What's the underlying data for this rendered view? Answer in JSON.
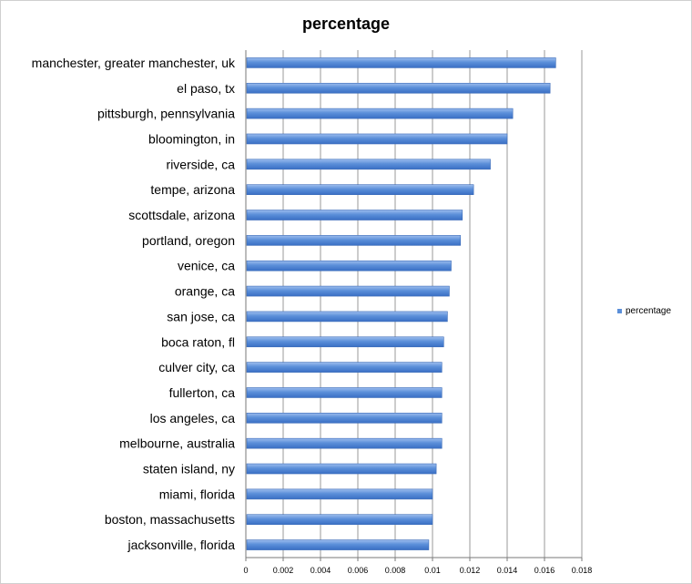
{
  "chart_data": {
    "type": "bar",
    "orientation": "horizontal",
    "title": "percentage",
    "xlabel": "",
    "ylabel": "",
    "categories": [
      "manchester, greater manchester, uk",
      "el paso, tx",
      "pittsburgh, pennsylvania",
      "bloomington, in",
      "riverside, ca",
      "tempe, arizona",
      "scottsdale, arizona",
      "portland, oregon",
      "venice, ca",
      "orange, ca",
      "san jose, ca",
      "boca raton, fl",
      "culver city, ca",
      "fullerton, ca",
      "los angeles, ca",
      "melbourne, australia",
      "staten island, ny",
      "miami, florida",
      "boston, massachusetts",
      "jacksonville, florida"
    ],
    "series": [
      {
        "name": "percentage",
        "color": "#5b8fd9",
        "values": [
          0.0166,
          0.0163,
          0.0143,
          0.014,
          0.0131,
          0.0122,
          0.0116,
          0.0115,
          0.011,
          0.0109,
          0.0108,
          0.0106,
          0.0105,
          0.0105,
          0.0105,
          0.0105,
          0.0102,
          0.01,
          0.01,
          0.0098
        ]
      }
    ],
    "xlim": [
      0,
      0.018
    ],
    "xticks": [
      "0",
      "0.002",
      "0.004",
      "0.006",
      "0.008",
      "0.01",
      "0.012",
      "0.014",
      "0.016",
      "0.018"
    ],
    "grid": true,
    "legend": "right"
  }
}
